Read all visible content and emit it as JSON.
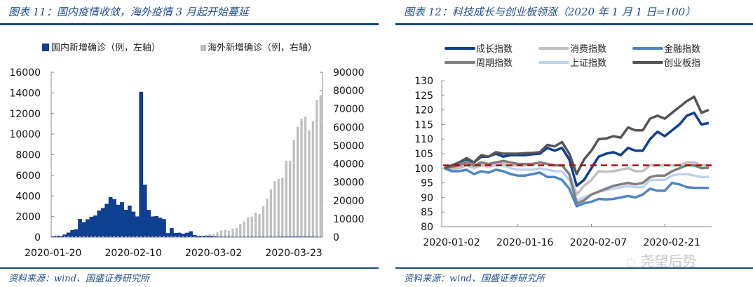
{
  "left_panel": {
    "title": "图表 11：国内疫情收敛，海外疫情 3 月起开始蔓延",
    "source": "资料来源：wind、国盛证券研究所"
  },
  "right_panel": {
    "title": "图表 12：科技成长与创业板领涨（2020 年 1 月 1 日=100）",
    "source": "资料来源：wind、国盛证券研究所"
  },
  "watermark": "尧望后势",
  "colors": {
    "domestic": "#0e3f91",
    "overseas": "#bfbfbf",
    "growth": "#0e3f91",
    "consumer": "#c0c0c0",
    "finance": "#4f86c6",
    "cyclical": "#7f7f7f",
    "shanghai": "#bdd3ee",
    "chinext": "#555555",
    "baseline": "#c00000",
    "title": "#1f4e8c"
  },
  "chart_data": [
    {
      "type": "bar",
      "title": "国内疫情收敛，海外疫情 3 月起开始蔓延",
      "legend": [
        "国内新增确诊（例，左轴）",
        "海外新增确诊（例，右轴）"
      ],
      "legend_position": "top",
      "x_tick_labels": [
        "2020-01-20",
        "2020-02-10",
        "2020-03-02",
        "2020-03-23"
      ],
      "x_start": "2020-01-20",
      "y_left": {
        "ylim": [
          0,
          16000
        ],
        "ticks": [
          0,
          2000,
          4000,
          6000,
          8000,
          10000,
          12000,
          14000,
          16000
        ]
      },
      "y_right": {
        "ylim": [
          0,
          90000
        ],
        "ticks": [
          0,
          10000,
          20000,
          30000,
          40000,
          50000,
          60000,
          70000,
          80000,
          90000
        ]
      },
      "series": [
        {
          "name": "国内新增确诊（例，左轴）",
          "axis": "left",
          "values": [
            77,
            149,
            131,
            259,
            444,
            688,
            769,
            1771,
            1459,
            1737,
            1981,
            2099,
            2590,
            2829,
            3235,
            3887,
            3694,
            3143,
            3399,
            2656,
            3062,
            2478,
            2015,
            14108,
            5090,
            2641,
            2008,
            2048,
            1886,
            1749,
            394,
            889,
            406,
            433,
            327,
            427,
            573,
            202,
            125,
            119,
            139,
            143,
            99,
            44,
            40,
            19,
            24,
            15,
            8,
            11,
            20,
            13,
            21,
            18,
            30,
            16,
            25,
            22,
            19,
            21,
            41,
            46,
            46,
            47,
            67,
            55,
            48,
            45,
            54,
            31
          ]
        },
        {
          "name": "海外新增确诊（例，右轴）",
          "axis": "right",
          "values": [
            0,
            0,
            0,
            0,
            0,
            0,
            0,
            0,
            0,
            0,
            0,
            0,
            0,
            0,
            0,
            0,
            0,
            0,
            0,
            0,
            0,
            0,
            0,
            0,
            0,
            0,
            0,
            0,
            0,
            0,
            0,
            0,
            0,
            0,
            0,
            0,
            0,
            0,
            0,
            0,
            1200,
            1800,
            1900,
            2600,
            3600,
            4000,
            3500,
            4700,
            4900,
            7200,
            8600,
            10800,
            11200,
            13300,
            12600,
            16800,
            21000,
            26200,
            30600,
            31800,
            32500,
            41800,
            41700,
            53200,
            60200,
            64600,
            65800,
            58400,
            63300,
            74800,
            77500
          ]
        }
      ]
    },
    {
      "type": "line",
      "title": "科技成长与创业板领涨（2020 年 1 月 1 日=100）",
      "legend": [
        "成长指数",
        "消费指数",
        "金融指数",
        "周期指数",
        "上证指数",
        "创业板指"
      ],
      "legend_position": "top",
      "x_tick_labels": [
        "2020-01-02",
        "2020-01-16",
        "2020-02-07",
        "2020-02-21"
      ],
      "ylim": [
        80,
        130
      ],
      "y_ticks": [
        80,
        85,
        90,
        95,
        100,
        105,
        110,
        115,
        120,
        125,
        130
      ],
      "reference_line": 101,
      "series": [
        {
          "name": "成长指数",
          "values": [
            100,
            101,
            102,
            103,
            102,
            104,
            104,
            105,
            104,
            104.5,
            104.5,
            104.5,
            104.8,
            105,
            107,
            106,
            107,
            103,
            94,
            96,
            100,
            104,
            105,
            105.5,
            104.5,
            107,
            106,
            106,
            110,
            112.5,
            111,
            113,
            115,
            118,
            119,
            115,
            115.5
          ]
        },
        {
          "name": "消费指数",
          "values": [
            100,
            99.8,
            100,
            101,
            100.5,
            101,
            101,
            102,
            101.5,
            101,
            101,
            101,
            101.5,
            102,
            101.5,
            101,
            101,
            98,
            91,
            94,
            96,
            99,
            98.8,
            99,
            99.5,
            100,
            99,
            99,
            101,
            101,
            101,
            101,
            101,
            102,
            102,
            101,
            101
          ]
        },
        {
          "name": "金融指数",
          "values": [
            100,
            99,
            99,
            99.5,
            98,
            99,
            98.5,
            99.5,
            99,
            98,
            97.5,
            97.5,
            98,
            98.5,
            97,
            97,
            96,
            93,
            87,
            88,
            88.5,
            89.5,
            89.3,
            89.5,
            90,
            90.5,
            90,
            91,
            93,
            92.3,
            92.3,
            95,
            94.5,
            93.5,
            93.3,
            93.3,
            93.3
          ]
        },
        {
          "name": "周期指数",
          "values": [
            100,
            100.5,
            101,
            102,
            101,
            102,
            101.5,
            102,
            102.5,
            102,
            101.5,
            101.5,
            101.5,
            102,
            101.5,
            101,
            101,
            98,
            88,
            89,
            91,
            92,
            93,
            94,
            94.5,
            95,
            94.5,
            95,
            97,
            97.5,
            97.5,
            99,
            100,
            101,
            101,
            100,
            100.2
          ]
        },
        {
          "name": "上证指数",
          "values": [
            100,
            100,
            100,
            101,
            100,
            101,
            100.5,
            101,
            101,
            100,
            99.5,
            99.5,
            99.5,
            100,
            99.5,
            99,
            99,
            96,
            89,
            90,
            91,
            92,
            92.5,
            93,
            93.5,
            94,
            93.5,
            93.5,
            96,
            96,
            96,
            97.5,
            98,
            98,
            97.5,
            97,
            97
          ]
        },
        {
          "name": "创业板指",
          "values": [
            100,
            101,
            102,
            103.5,
            102,
            104.5,
            104,
            105.5,
            105,
            105,
            105,
            105.2,
            105.3,
            105.5,
            108,
            107.5,
            109,
            105,
            98,
            103,
            106,
            110,
            110.2,
            111,
            110.5,
            114,
            113,
            113,
            117,
            118,
            117,
            119,
            121,
            123,
            124.5,
            119,
            120
          ]
        }
      ]
    }
  ]
}
